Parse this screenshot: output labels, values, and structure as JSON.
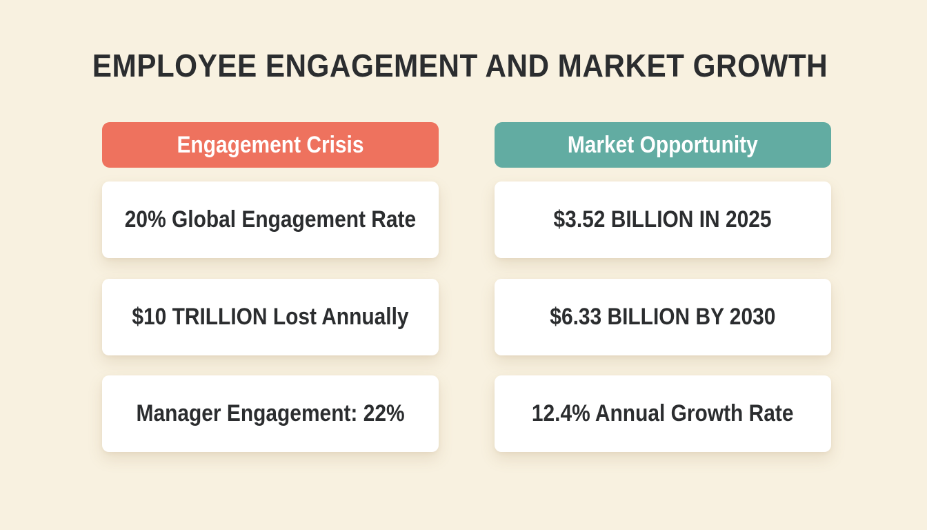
{
  "title": "EMPLOYEE ENGAGEMENT AND MARKET GROWTH",
  "colors": {
    "background": "#f8f1e0",
    "crisis_header": "#ee725e",
    "opportunity_header": "#62aca2",
    "text": "#2b2d2f"
  },
  "crisis": {
    "heading": "Engagement Crisis",
    "items": [
      "20% Global Engagement Rate",
      "$10 TRILLION Lost Annually",
      "Manager Engagement: 22%"
    ]
  },
  "opportunity": {
    "heading": "Market Opportunity",
    "items": [
      "$3.52 BILLION IN 2025",
      "$6.33 BILLION BY 2030",
      "12.4% Annual Growth Rate"
    ]
  }
}
